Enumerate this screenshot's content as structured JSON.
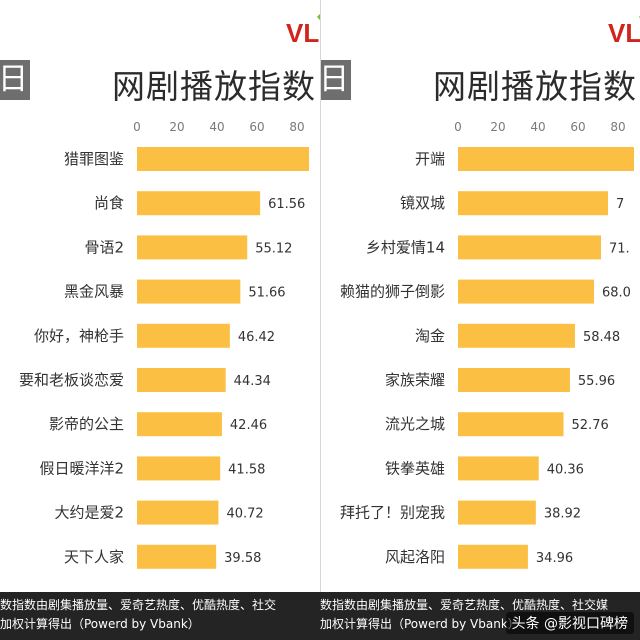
{
  "colors": {
    "bar": "#fbc043",
    "axis_text": "#7a7a7a",
    "label_text": "#333333",
    "logo": "#d0241c"
  },
  "logo_text": "VL",
  "chart_data": [
    {
      "type": "bar",
      "orientation": "horizontal",
      "title": "网剧播放指数",
      "tag": "日",
      "xlim": [
        0,
        88
      ],
      "ticks": [
        0,
        20,
        40,
        60,
        80
      ],
      "categories": [
        "猎罪图鉴",
        "尚食",
        "骨语2",
        "黑金风暴",
        "你好，神枪手",
        "要和老板谈恋爱",
        "影帝的公主",
        "假日暖洋洋2",
        "大约是爱2",
        "天下人家"
      ],
      "values": [
        null,
        61.56,
        55.12,
        51.66,
        46.42,
        44.34,
        42.46,
        41.58,
        40.72,
        39.58
      ],
      "approx_values": [
        86,
        null,
        null,
        null,
        null,
        null,
        null,
        null,
        null,
        null
      ],
      "value_labels": [
        "",
        "61.56",
        "55.12",
        "51.66",
        "46.42",
        "44.34",
        "42.46",
        "41.58",
        "40.72",
        "39.58"
      ]
    },
    {
      "type": "bar",
      "orientation": "horizontal",
      "title": "网剧播放指数",
      "tag": "日",
      "xlim": [
        0,
        88
      ],
      "ticks": [
        0,
        20,
        40,
        60,
        80
      ],
      "categories": [
        "开端",
        "镜双城",
        "乡村爱情14",
        "赖猫的狮子倒影",
        "淘金",
        "家族荣耀",
        "流光之城",
        "铁拳英雄",
        "拜托了！别宠我",
        "风起洛阳"
      ],
      "values": [
        null,
        null,
        null,
        68.0,
        58.48,
        55.96,
        52.76,
        40.36,
        38.92,
        34.96
      ],
      "approx_values": [
        88,
        75,
        71.5,
        null,
        null,
        null,
        null,
        null,
        null,
        null
      ],
      "value_labels": [
        "",
        "7",
        "71.",
        "68.0",
        "58.48",
        "55.96",
        "52.76",
        "40.36",
        "38.92",
        "34.96"
      ]
    }
  ],
  "footer": {
    "left_line1": "数指数由剧集播放量、爱奇艺热度、优酷热度、社交",
    "left_line2": "加权计算得出（Powerd by Vbank）",
    "right_line1": "数指数由剧集播放量、爱奇艺热度、优酷热度、社交媒",
    "right_line2": "加权计算得出（Powerd by Vbank）",
    "watermark": "头条 @影视口碑榜"
  }
}
